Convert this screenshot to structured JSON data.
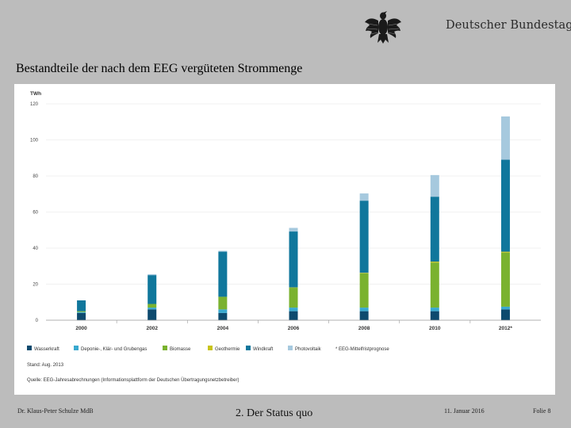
{
  "header": {
    "brand": "Deutscher Bundestag",
    "logo_icon": "federal-eagle-icon"
  },
  "slide": {
    "title": "Bestandteile der nach dem EEG vergüteten Strommenge"
  },
  "footer": {
    "author": "Dr. Klaus-Peter Schulze MdB",
    "section": "2. Der Status quo",
    "date": "11. Januar 2016",
    "page": "Folie 8"
  },
  "chart_data": {
    "type": "bar",
    "stacked": true,
    "unit_label": "TWh",
    "ylim": [
      0,
      120
    ],
    "yticks": [
      0,
      20,
      40,
      60,
      80,
      100,
      120
    ],
    "categories": [
      "2000",
      "2002",
      "2004",
      "2006",
      "2008",
      "2010",
      "2012*"
    ],
    "series": [
      {
        "name": "Wasserkraft",
        "color": "#0d4a6e",
        "values": [
          4,
          6,
          4,
          5,
          5,
          5,
          6
        ]
      },
      {
        "name": "Deponie-, Klär- und Grubengas",
        "color": "#39a9cf",
        "values": [
          0.5,
          1,
          2,
          2,
          2,
          2,
          1.5
        ]
      },
      {
        "name": "Biomasse",
        "color": "#7ab22f",
        "values": [
          0.5,
          2,
          7,
          11,
          19,
          25,
          30
        ]
      },
      {
        "name": "Geothermie",
        "color": "#c8c41a",
        "values": [
          0,
          0,
          0,
          0.2,
          0.3,
          0.5,
          0.5
        ]
      },
      {
        "name": "Windkraft",
        "color": "#10779c",
        "values": [
          6,
          16,
          25,
          31,
          40,
          36,
          51
        ]
      },
      {
        "name": "Photovoltaik",
        "color": "#a6c9de",
        "values": [
          0,
          0.5,
          0.5,
          2,
          4,
          12,
          24
        ]
      }
    ],
    "legend_note": "* EEG-Mittelfristprognose",
    "legend_position": "bottom",
    "grid": true,
    "stand": "Stand: Aug. 2013",
    "source": "Quelle: EEG-Jahresabrechnungen (Informationsplattform der Deutschen Übertragungsnetzbetreiber)"
  }
}
